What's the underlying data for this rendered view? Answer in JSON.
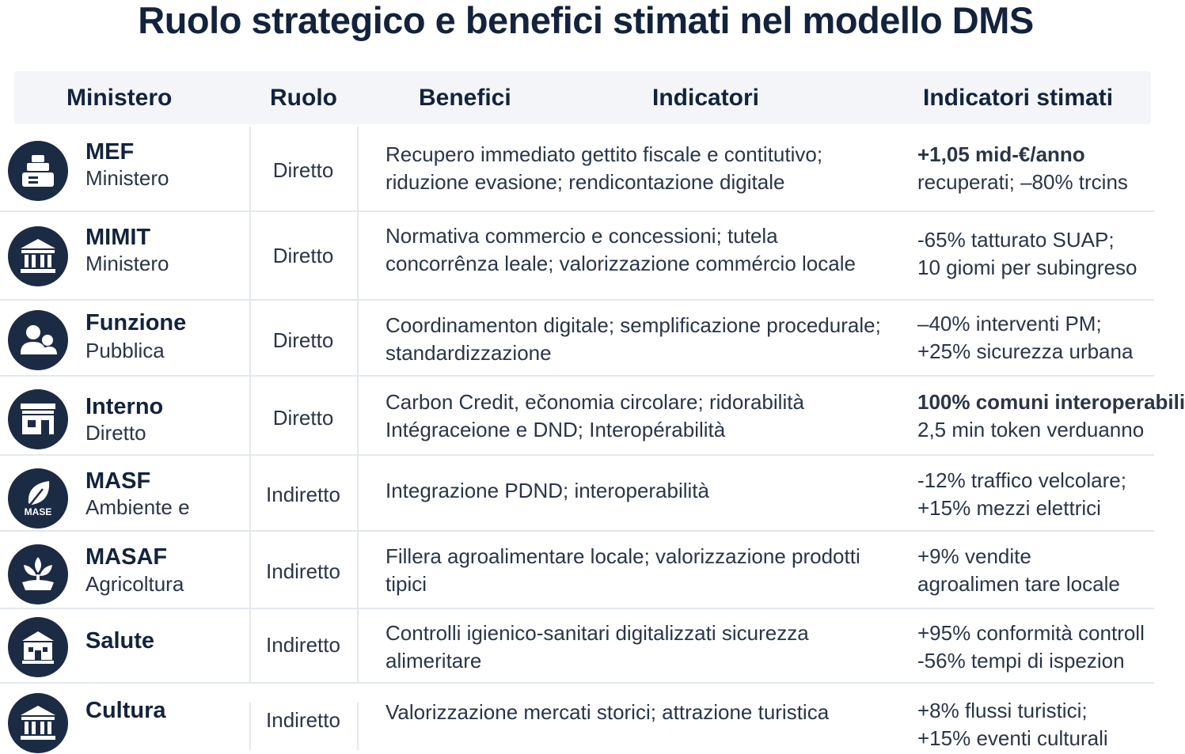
{
  "title": "Ruolo strategico e benefici stimati nel modello DMS",
  "headers": {
    "ministero": "Ministero",
    "ruolo": "Ruolo",
    "benefici": "Benefici",
    "indicatori": "Indicatori",
    "indicatori_stimati": "Indicatori stimati"
  },
  "rows": [
    {
      "icon": "register-icon",
      "name": "MEF",
      "sub": "Ministero",
      "ruolo": "Diretto",
      "benefici": "Recupero immediato gettito fiscale e contitutivo; riduzione evasione; rendicontazione digitale",
      "ind1": "+1,05 mid-€/anno",
      "ind2": "recuperati; –80% trcins"
    },
    {
      "icon": "building-columns-icon",
      "name": "MIMIT",
      "sub": "Ministero",
      "ruolo": "Diretto",
      "benefici": "Normativa commercio e concessioni; tutela concorrênza leale; valorizzazione commércio locale",
      "ind1": "-65% tatturato SUAP;",
      "ind2": "10 giomi per subingreso"
    },
    {
      "icon": "users-icon",
      "name": "Funzione",
      "sub": "Pubblica",
      "ruolo": "Diretto",
      "benefici": "Coordinamenton digitale; semplificazione procedurale; standardizzazione",
      "ind1": "–40% interventi PM;",
      "ind2": "+25% sicurezza urbana"
    },
    {
      "icon": "storefront-icon",
      "name": "Interno",
      "sub": "Diretto",
      "ruolo": "Diretto",
      "benefici": "Carbon Credit, ečonomia circolare; ridorabilità Intégraceione e DND; Interopérabilità",
      "ind1": "100% comuni interoperabili",
      "ind2": "2,5 min token verduanno"
    },
    {
      "icon": "leaf-icon",
      "icon_label": "MASE",
      "name": "MASF",
      "sub": "Ambiente e",
      "ruolo": "Indiretto",
      "benefici": "Integrazione PDND; interoperabilità",
      "ind1": "-12% traffico velcolare;",
      "ind2": "+15% mezzi elettrici"
    },
    {
      "icon": "plant-icon",
      "name": "MASAF",
      "sub": "Agricoltura",
      "ruolo": "Indiretto",
      "benefici": "Fillera agroalimentare locale; valorizzazione prodotti tipici",
      "ind1": "+9% vendite",
      "ind2": "agroalimen tare locale"
    },
    {
      "icon": "hospital-icon",
      "name": "Salute",
      "sub": "",
      "ruolo": "Indiretto",
      "benefici": "Controlli igienico-sanitari digitalizzati sicurezza alimeritare",
      "ind1": "+95% conformità controll",
      "ind2": "-56% tempi di ispezion"
    },
    {
      "icon": "museum-icon",
      "name": "Cultura",
      "sub": "",
      "ruolo": "Indiretto",
      "benefici": "Valorizzazione mercati storici; attrazione turistica",
      "ind1": "+8% flussi turistici;",
      "ind2": "+15% eventi culturali"
    }
  ]
}
